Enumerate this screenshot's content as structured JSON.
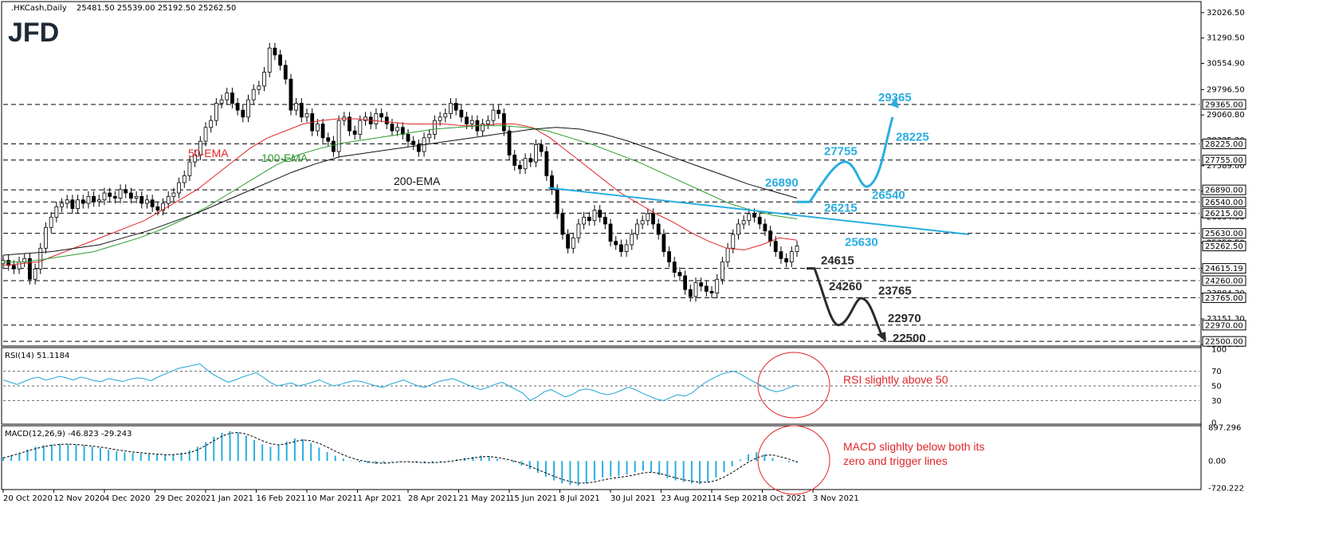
{
  "header": {
    "symbol": ".HKCash,Daily",
    "ohlc": "25481.50 25539.00 25192.50 25262.50"
  },
  "logo": "JFD",
  "chart_data": [
    {
      "type": "candlestick",
      "title": ".HKCash,Daily",
      "x_ticks": [
        "20 Oct 2020",
        "12 Nov 2020",
        "4 Dec 2020",
        "29 Dec 2020",
        "21 Jan 2021",
        "16 Feb 2021",
        "10 Mar 2021",
        "1 Apr 2021",
        "28 Apr 2021",
        "21 May 2021",
        "15 Jun 2021",
        "8 Jul 2021",
        "30 Jul 2021",
        "23 Aug 2021",
        "14 Sep 2021",
        "8 Oct 2021",
        "3 Nov 2021"
      ],
      "y_axis_labels": [
        "32026.50",
        "31290.50",
        "30554.90",
        "29796.50",
        "29060.80",
        "28325.20",
        "27589.00",
        "26854.20",
        "26094.50",
        "25358.50",
        "24622.70",
        "23884.20",
        "23151.30",
        "22411.10"
      ],
      "ylim": [
        22411.1,
        32300
      ],
      "current_price": "25262.50",
      "levels": [
        {
          "value": 29365,
          "label": "29365",
          "box": "29365.00",
          "color": "cyan"
        },
        {
          "value": 28225,
          "label": "28225",
          "box": "28225.00",
          "color": "cyan"
        },
        {
          "value": 27755,
          "label": "27755",
          "box": "27755.00",
          "color": "cyan"
        },
        {
          "value": 26890,
          "label": "26890",
          "box": "26890.00",
          "color": "cyan"
        },
        {
          "value": 26540,
          "label": "26540",
          "box": "26540.00",
          "color": "cyan"
        },
        {
          "value": 26215,
          "label": "26215",
          "box": "26215.00",
          "color": "cyan"
        },
        {
          "value": 25630,
          "label": "25630",
          "box": "25630.00",
          "color": "cyan"
        },
        {
          "value": 24615,
          "label": "24615",
          "box": "24615.19",
          "color": "dark"
        },
        {
          "value": 24260,
          "label": "24260",
          "box": "24260.00",
          "color": "dark"
        },
        {
          "value": 23765,
          "label": "23765",
          "box": "23765.00",
          "color": "dark"
        },
        {
          "value": 22970,
          "label": "22970",
          "box": "22970.00",
          "color": "dark"
        },
        {
          "value": 22500,
          "label": "22500",
          "box": "22500.00",
          "color": "dark"
        }
      ],
      "ema_labels": [
        {
          "name": "50-EMA",
          "color": "#e0262a"
        },
        {
          "name": "100-EMA",
          "color": "#2e9a2e"
        },
        {
          "name": "200-EMA",
          "color": "#111111"
        }
      ],
      "closes": [
        24850,
        24700,
        24600,
        24800,
        24900,
        24300,
        24600,
        25200,
        25800,
        26100,
        26400,
        26500,
        26600,
        26350,
        26600,
        26500,
        26700,
        26550,
        26600,
        26800,
        26700,
        26650,
        26900,
        26800,
        26650,
        26700,
        26500,
        26600,
        26400,
        26300,
        26500,
        26700,
        26800,
        27100,
        27300,
        27700,
        27900,
        28300,
        28700,
        28900,
        29400,
        29500,
        29700,
        29400,
        29200,
        29000,
        29500,
        29800,
        29900,
        30300,
        31000,
        30800,
        30500,
        30100,
        29200,
        29400,
        29000,
        29100,
        28600,
        28800,
        28400,
        28300,
        28000,
        28900,
        29000,
        28600,
        28500,
        28900,
        29000,
        28800,
        29100,
        29000,
        28800,
        28600,
        28700,
        28500,
        28300,
        28200,
        28000,
        28400,
        28500,
        28900,
        29000,
        29100,
        29400,
        29200,
        29000,
        28800,
        28900,
        28600,
        28800,
        28900,
        29200,
        29100,
        28600,
        27900,
        27600,
        27500,
        27800,
        27700,
        28200,
        28000,
        27300,
        26900,
        26200,
        25600,
        25200,
        25500,
        25900,
        26100,
        26000,
        26300,
        26100,
        25900,
        25400,
        25300,
        25100,
        25300,
        25600,
        25900,
        26000,
        26200,
        25900,
        25600,
        25100,
        24800,
        24500,
        24400,
        24000,
        23800,
        24200,
        24100,
        23950,
        23900,
        24300,
        24800,
        25200,
        25600,
        25900,
        26000,
        26200,
        26100,
        25900,
        25700,
        25400,
        25100,
        24900,
        24800,
        25100,
        25262.5
      ],
      "ema50": [
        24700,
        24750,
        24800,
        25000,
        25200,
        25400,
        25600,
        25800,
        26000,
        26300,
        26600,
        26900,
        27300,
        27700,
        28100,
        28400,
        28600,
        28800,
        28900,
        28950,
        28950,
        28900,
        28850,
        28800,
        28800,
        28800,
        28750,
        28750,
        28800,
        28800,
        28700,
        28400,
        28000,
        27600,
        27200,
        26800,
        26500,
        26200,
        25950,
        25650,
        25400,
        25200,
        25150,
        25300,
        25500,
        25430
      ],
      "ema100": [
        24800,
        24800,
        24900,
        25000,
        25100,
        25300,
        25500,
        25750,
        26050,
        26400,
        26800,
        27200,
        27600,
        27900,
        28100,
        28250,
        28350,
        28450,
        28550,
        28650,
        28700,
        28750,
        28750,
        28700,
        28600,
        28400,
        28200,
        27950,
        27700,
        27400,
        27100,
        26800,
        26500,
        26300,
        26150,
        26050
      ],
      "ema200": [
        25000,
        25050,
        25100,
        25200,
        25300,
        25500,
        25700,
        25950,
        26200,
        26500,
        26800,
        27100,
        27400,
        27650,
        27850,
        27950,
        28050,
        28150,
        28250,
        28350,
        28450,
        28550,
        28650,
        28700,
        28650,
        28500,
        28300,
        28050,
        27800,
        27550,
        27300,
        27050,
        26850,
        26650
      ]
    },
    {
      "type": "line",
      "title": "RSI(14) 51.1184",
      "y_axis_labels": [
        "100",
        "70",
        "50",
        "30",
        "0"
      ],
      "ylim": [
        0,
        100
      ],
      "values": [
        58,
        55,
        52,
        56,
        60,
        62,
        58,
        60,
        63,
        61,
        58,
        62,
        60,
        57,
        56,
        60,
        58,
        56,
        59,
        61,
        60,
        57,
        62,
        66,
        70,
        74,
        76,
        78,
        80,
        72,
        65,
        60,
        55,
        58,
        62,
        65,
        68,
        62,
        55,
        50,
        52,
        54,
        50,
        52,
        55,
        58,
        54,
        50,
        52,
        55,
        57,
        56,
        53,
        50,
        48,
        52,
        55,
        58,
        54,
        50,
        48,
        52,
        56,
        58,
        60,
        56,
        52,
        48,
        45,
        48,
        52,
        55,
        50,
        45,
        40,
        30,
        35,
        42,
        45,
        40,
        35,
        38,
        44,
        46,
        44,
        40,
        38,
        40,
        44,
        48,
        45,
        40,
        36,
        32,
        30,
        34,
        38,
        36,
        40,
        48,
        55,
        60,
        65,
        68,
        70,
        66,
        60,
        55,
        50,
        45,
        42,
        44,
        48,
        51.1
      ]
    },
    {
      "type": "bar+line",
      "title": "MACD(12,26,9) -46.823 -29.243",
      "y_axis_labels": [
        "897.296",
        "0.00",
        "-720.222"
      ],
      "ylim": [
        -720.222,
        897.296
      ],
      "histogram": [
        100,
        150,
        220,
        300,
        380,
        420,
        440,
        460,
        450,
        430,
        420,
        380,
        340,
        300,
        260,
        230,
        210,
        200,
        180,
        170,
        160,
        180,
        220,
        280,
        380,
        500,
        650,
        750,
        800,
        760,
        680,
        560,
        440,
        380,
        420,
        520,
        600,
        580,
        480,
        360,
        240,
        140,
        60,
        10,
        -40,
        -60,
        -80,
        -60,
        -20,
        10,
        -10,
        -40,
        -60,
        -40,
        -20,
        10,
        50,
        80,
        110,
        140,
        120,
        60,
        10,
        -40,
        -120,
        -220,
        -320,
        -420,
        -520,
        -600,
        -640,
        -660,
        -600,
        -520,
        -440,
        -420,
        -400,
        -360,
        -300,
        -260,
        -300,
        -380,
        -460,
        -520,
        -560,
        -600,
        -620,
        -560,
        -440,
        -300,
        -140,
        40,
        180,
        240,
        180,
        80,
        10,
        -30,
        -47
      ],
      "signal": [
        80,
        140,
        200,
        270,
        330,
        380,
        420,
        440,
        450,
        440,
        420,
        400,
        370,
        340,
        300,
        270,
        240,
        220,
        200,
        180,
        170,
        170,
        190,
        220,
        300,
        410,
        540,
        660,
        740,
        760,
        720,
        640,
        540,
        460,
        430,
        460,
        520,
        560,
        540,
        470,
        370,
        260,
        160,
        80,
        20,
        -20,
        -50,
        -60,
        -45,
        -25,
        -20,
        -30,
        -45,
        -45,
        -35,
        -15,
        15,
        50,
        80,
        110,
        120,
        95,
        55,
        5,
        -60,
        -140,
        -230,
        -320,
        -410,
        -490,
        -550,
        -590,
        -590,
        -560,
        -510,
        -470,
        -440,
        -410,
        -370,
        -320,
        -300,
        -330,
        -390,
        -450,
        -500,
        -540,
        -570,
        -570,
        -520,
        -430,
        -310,
        -170,
        -30,
        80,
        150,
        160,
        110,
        50,
        -29
      ]
    }
  ],
  "annotations": {
    "rsi": "RSI slightly above 50",
    "macd_line1": "MACD slighlty below both its",
    "macd_line2": "zero and trigger lines"
  }
}
